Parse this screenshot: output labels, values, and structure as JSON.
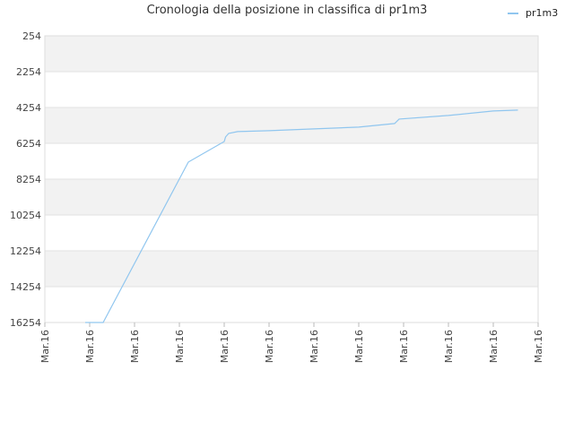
{
  "chart_data": {
    "type": "line",
    "title": "Cronologia della posizione in classifica di pr1m3",
    "xlabel": "",
    "ylabel": "",
    "y_inverted": true,
    "ylim": [
      254,
      16254
    ],
    "y_ticks": [
      "254",
      "2254",
      "4254",
      "6254",
      "8254",
      "10254",
      "12254",
      "14254",
      "16254"
    ],
    "x_ticks": [
      "Mar.16",
      "Mar.16",
      "Mar.16",
      "Mar.16",
      "Mar.16",
      "Mar.16",
      "Mar.16",
      "Mar.16",
      "Mar.16",
      "Mar.16",
      "Mar.16",
      "Mar.16"
    ],
    "grid": true,
    "legend_position": "top-right",
    "series": [
      {
        "name": "pr1m3",
        "color": "#90c6ef",
        "x": [
          0.9,
          1.3,
          3.2,
          4.0,
          4.03,
          4.1,
          4.3,
          5.0,
          6.0,
          7.0,
          7.8,
          7.9,
          9.0,
          10.0,
          10.55
        ],
        "y": [
          16254,
          16254,
          7300,
          6154,
          5900,
          5700,
          5600,
          5550,
          5450,
          5350,
          5150,
          4900,
          4700,
          4450,
          4400
        ]
      }
    ]
  }
}
